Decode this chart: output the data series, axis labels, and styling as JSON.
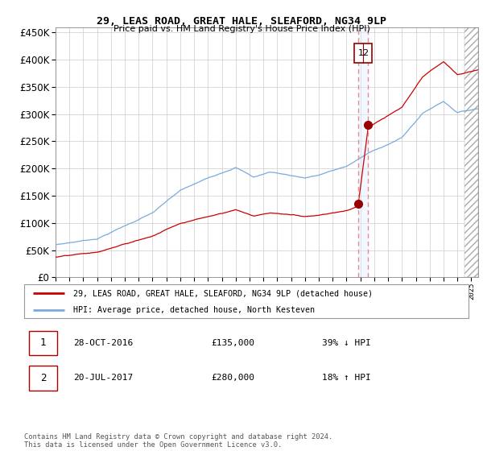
{
  "title": "29, LEAS ROAD, GREAT HALE, SLEAFORD, NG34 9LP",
  "subtitle": "Price paid vs. HM Land Registry's House Price Index (HPI)",
  "legend_line1": "29, LEAS ROAD, GREAT HALE, SLEAFORD, NG34 9LP (detached house)",
  "legend_line2": "HPI: Average price, detached house, North Kesteven",
  "transaction1_date": "28-OCT-2016",
  "transaction1_price": "£135,000",
  "transaction1_pct": "39% ↓ HPI",
  "transaction2_date": "20-JUL-2017",
  "transaction2_price": "£280,000",
  "transaction2_pct": "18% ↑ HPI",
  "footer": "Contains HM Land Registry data © Crown copyright and database right 2024.\nThis data is licensed under the Open Government Licence v3.0.",
  "hpi_color": "#7aaadd",
  "price_color": "#cc0000",
  "marker_color": "#990000",
  "dashed_line_color": "#ee8888",
  "background_color": "#ffffff",
  "grid_color": "#cccccc",
  "hatch_color": "#aaaaaa",
  "ylim": [
    0,
    460000
  ],
  "xlim_start": 1995.0,
  "xlim_end": 2025.5,
  "transaction1_x": 2016.83,
  "transaction1_y": 135000,
  "transaction2_x": 2017.56,
  "transaction2_y": 280000,
  "hatch_start": 2024.5
}
